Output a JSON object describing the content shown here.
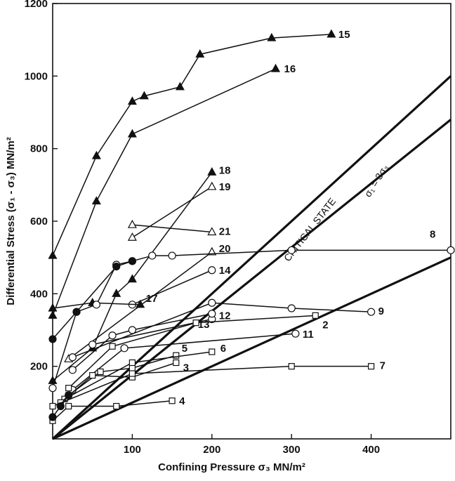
{
  "chart_data": {
    "type": "line",
    "xlabel": "Confining Pressure  σ₃  MN/m²",
    "ylabel": "Differential Stress (σ₁ - σ₃)  MN/m²",
    "xlim": [
      0,
      500
    ],
    "ylim": [
      0,
      1200
    ],
    "xticks": [
      "100",
      "200",
      "300",
      "400"
    ],
    "yticks": [
      "200",
      "400",
      "600",
      "800",
      "1000",
      "1200"
    ],
    "grid": false,
    "series": [
      {
        "name": "15",
        "marker": "triangle-filled",
        "points": [
          [
            0,
            505
          ],
          [
            55,
            780
          ],
          [
            100,
            930
          ],
          [
            115,
            945
          ],
          [
            160,
            970
          ],
          [
            185,
            1060
          ],
          [
            275,
            1105
          ],
          [
            350,
            1115
          ]
        ]
      },
      {
        "name": "16",
        "marker": "triangle-filled",
        "points": [
          [
            0,
            340
          ],
          [
            55,
            655
          ],
          [
            100,
            840
          ],
          [
            280,
            1020
          ]
        ]
      },
      {
        "name": "18",
        "marker": "triangle-filled",
        "points": [
          [
            0,
            160
          ],
          [
            50,
            250
          ],
          [
            80,
            400
          ],
          [
            100,
            440
          ],
          [
            200,
            735
          ]
        ]
      },
      {
        "name": "19",
        "marker": "triangle-open",
        "points": [
          [
            100,
            555
          ],
          [
            200,
            695
          ]
        ]
      },
      {
        "name": "21",
        "marker": "triangle-open",
        "points": [
          [
            100,
            590
          ],
          [
            200,
            570
          ]
        ]
      },
      {
        "name": "20",
        "marker": "triangle-open",
        "points": [
          [
            20,
            220
          ],
          [
            200,
            515
          ]
        ]
      },
      {
        "name": "14",
        "marker": "circle-open",
        "points": [
          [
            100,
            370
          ],
          [
            200,
            465
          ]
        ]
      },
      {
        "name": "17",
        "marker": "triangle-filled",
        "points": [
          [
            0,
            360
          ],
          [
            50,
            375
          ],
          [
            110,
            370
          ]
        ]
      },
      {
        "name": "8",
        "marker": "circle-open",
        "points": [
          [
            0,
            140
          ],
          [
            30,
            350
          ],
          [
            55,
            370
          ],
          [
            80,
            480
          ],
          [
            100,
            490
          ],
          [
            125,
            505
          ],
          [
            150,
            505
          ],
          [
            300,
            520
          ],
          [
            500,
            520
          ]
        ]
      },
      {
        "name": "9",
        "marker": "circle-open",
        "points": [
          [
            25,
            225
          ],
          [
            200,
            375
          ],
          [
            300,
            360
          ],
          [
            400,
            350
          ]
        ]
      },
      {
        "name": "12",
        "marker": "circle-open",
        "points": [
          [
            50,
            260
          ],
          [
            200,
            330
          ]
        ]
      },
      {
        "name": "13",
        "marker": "circle-open",
        "points": [
          [
            25,
            190
          ],
          [
            75,
            285
          ],
          [
            100,
            300
          ],
          [
            200,
            345
          ]
        ]
      },
      {
        "name": "11",
        "marker": "circle-open",
        "points": [
          [
            25,
            135
          ],
          [
            90,
            250
          ],
          [
            305,
            290
          ]
        ]
      },
      {
        "name": "2",
        "marker": "square-open",
        "points": [
          [
            20,
            140
          ],
          [
            75,
            255
          ],
          [
            180,
            320
          ],
          [
            330,
            340
          ]
        ]
      },
      {
        "name": "5",
        "marker": "square-open",
        "points": [
          [
            20,
            120
          ],
          [
            60,
            185
          ],
          [
            100,
            195
          ],
          [
            155,
            230
          ]
        ]
      },
      {
        "name": "6",
        "marker": "square-open",
        "points": [
          [
            15,
            110
          ],
          [
            100,
            210
          ],
          [
            200,
            240
          ]
        ]
      },
      {
        "name": "3",
        "marker": "square-open",
        "points": [
          [
            10,
            100
          ],
          [
            50,
            175
          ],
          [
            100,
            170
          ],
          [
            155,
            210
          ]
        ]
      },
      {
        "name": "7",
        "marker": "square-open",
        "points": [
          [
            0,
            90
          ],
          [
            100,
            180
          ],
          [
            300,
            200
          ],
          [
            400,
            200
          ]
        ]
      },
      {
        "name": "4",
        "marker": "square-open",
        "points": [
          [
            0,
            50
          ],
          [
            20,
            90
          ],
          [
            80,
            90
          ],
          [
            150,
            105
          ]
        ]
      },
      {
        "name": "",
        "marker": "circle-filled",
        "points": [
          [
            0,
            275
          ],
          [
            30,
            350
          ],
          [
            80,
            475
          ],
          [
            100,
            490
          ]
        ]
      },
      {
        "name": "",
        "marker": "circle-filled",
        "points": [
          [
            0,
            60
          ],
          [
            10,
            90
          ],
          [
            20,
            120
          ]
        ]
      }
    ],
    "reference_lines": [
      {
        "label": "σ₁ = 3σ₃",
        "points": [
          [
            0,
            0
          ],
          [
            500,
            1000
          ]
        ]
      },
      {
        "label": "CRITICAL STATE",
        "points": [
          [
            0,
            0
          ],
          [
            500,
            880
          ]
        ]
      },
      {
        "label": "",
        "points": [
          [
            0,
            0
          ],
          [
            500,
            500
          ]
        ]
      }
    ]
  }
}
